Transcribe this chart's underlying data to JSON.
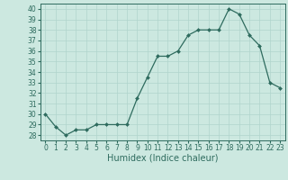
{
  "x": [
    0,
    1,
    2,
    3,
    4,
    5,
    6,
    7,
    8,
    9,
    10,
    11,
    12,
    13,
    14,
    15,
    16,
    17,
    18,
    19,
    20,
    21,
    22,
    23
  ],
  "y": [
    30,
    28.8,
    28,
    28.5,
    28.5,
    29,
    29,
    29,
    29,
    31.5,
    33.5,
    35.5,
    35.5,
    36,
    37.5,
    38,
    38,
    38,
    40,
    39.5,
    37.5,
    36.5,
    33,
    32.5
  ],
  "xlabel": "Humidex (Indice chaleur)",
  "ylabel": "",
  "ylim": [
    27.5,
    40.5
  ],
  "xlim": [
    -0.5,
    23.5
  ],
  "yticks": [
    28,
    29,
    30,
    31,
    32,
    33,
    34,
    35,
    36,
    37,
    38,
    39,
    40
  ],
  "xticks": [
    0,
    1,
    2,
    3,
    4,
    5,
    6,
    7,
    8,
    9,
    10,
    11,
    12,
    13,
    14,
    15,
    16,
    17,
    18,
    19,
    20,
    21,
    22,
    23
  ],
  "line_color": "#2e6b5e",
  "marker_color": "#2e6b5e",
  "bg_color": "#cce8e0",
  "grid_color": "#b0d4cc",
  "tick_fontsize": 5.5,
  "xlabel_fontsize": 7
}
